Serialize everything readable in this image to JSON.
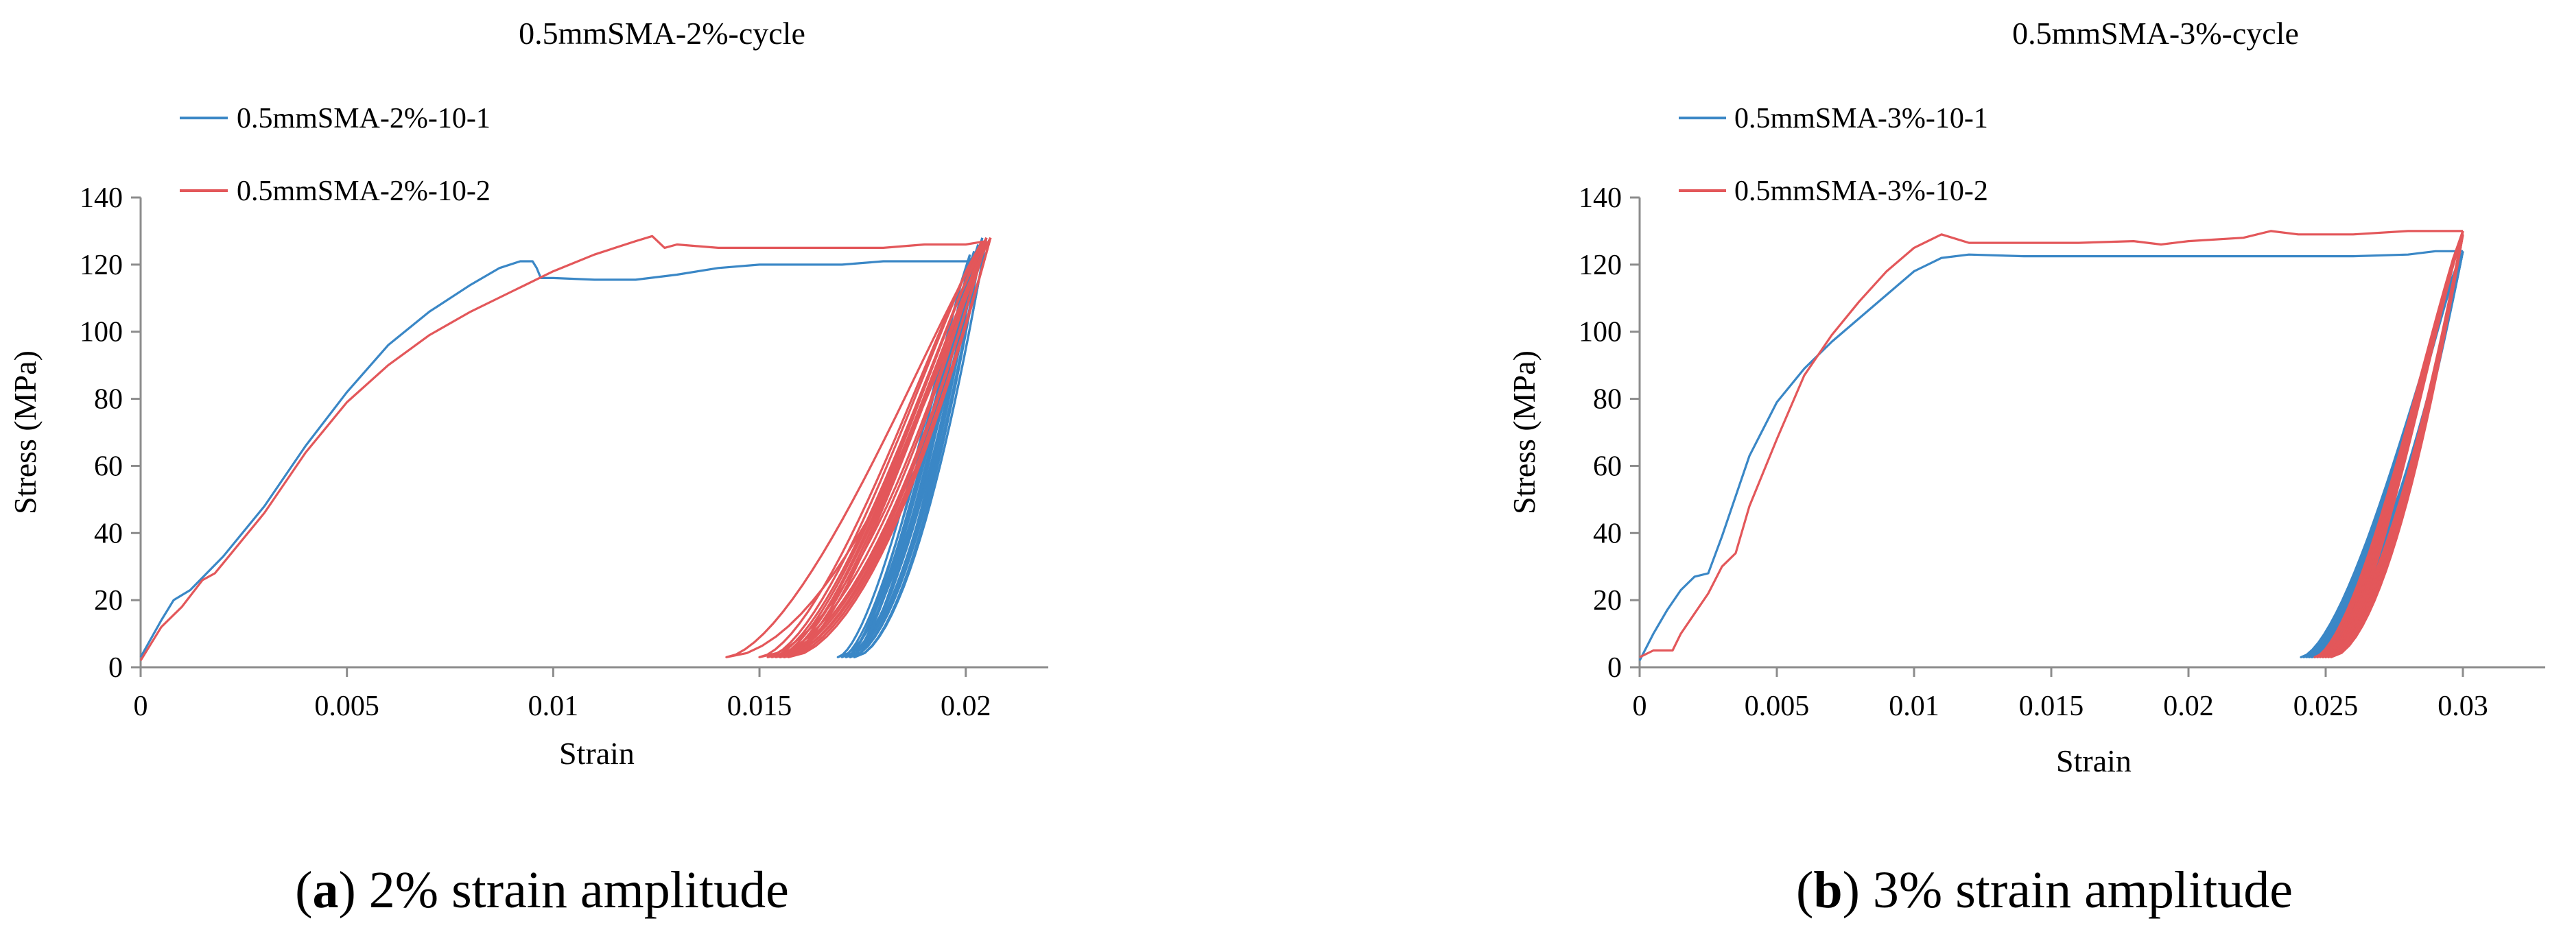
{
  "figure": {
    "captions": [
      {
        "letter": "a",
        "open": "(",
        "close": ")",
        "text": " 2% strain amplitude"
      },
      {
        "letter": "b",
        "open": "(",
        "close": ")",
        "text": " 3% strain amplitude"
      }
    ]
  },
  "colors": {
    "series_1": "#3A87C6",
    "series_2": "#E3575A",
    "axis": "#8c8c8c"
  },
  "chart_data": [
    {
      "type": "line",
      "title": "0.5mmSMA-2%-cycle",
      "xlabel": "Strain",
      "ylabel": "Stress (MPa)",
      "xlim": [
        0,
        0.022
      ],
      "ylim": [
        0,
        140
      ],
      "xticks": [
        0,
        0.005,
        0.01,
        0.015,
        0.02
      ],
      "xtick_labels": [
        "0",
        "0.005",
        "0.01",
        "0.015",
        "0.02"
      ],
      "yticks": [
        0,
        20,
        40,
        60,
        80,
        100,
        120,
        140
      ],
      "ytick_labels": [
        "0",
        "20",
        "40",
        "60",
        "80",
        "100",
        "120",
        "140"
      ],
      "grid": false,
      "legend": "top-left",
      "series": [
        {
          "name": "0.5mmSMA-2%-10-1",
          "color": "#3A87C6",
          "loading": [
            [
              0,
              3
            ],
            [
              0.0005,
              14
            ],
            [
              0.0008,
              20
            ],
            [
              0.0012,
              23
            ],
            [
              0.002,
              33
            ],
            [
              0.003,
              48
            ],
            [
              0.004,
              66
            ],
            [
              0.005,
              82
            ],
            [
              0.006,
              96
            ],
            [
              0.007,
              106
            ],
            [
              0.008,
              114
            ],
            [
              0.0087,
              119
            ],
            [
              0.0092,
              121
            ],
            [
              0.0095,
              121
            ],
            [
              0.0096,
              119
            ],
            [
              0.0097,
              116
            ],
            [
              0.01,
              116
            ],
            [
              0.011,
              115.5
            ],
            [
              0.012,
              115.5
            ],
            [
              0.013,
              117
            ],
            [
              0.014,
              119
            ],
            [
              0.015,
              120
            ],
            [
              0.016,
              120
            ],
            [
              0.017,
              120
            ],
            [
              0.018,
              121
            ],
            [
              0.019,
              121
            ],
            [
              0.02,
              121
            ],
            [
              0.0202,
              121
            ]
          ],
          "cycles": [
            {
              "peak": [
                0.0202,
                121
              ],
              "end": [
                0.017,
                3
              ]
            },
            {
              "peak": [
                0.0201,
                122
              ],
              "end": [
                0.0169,
                3
              ]
            },
            {
              "peak": [
                0.0201,
                123
              ],
              "end": [
                0.0171,
                3
              ]
            },
            {
              "peak": [
                0.0202,
                124
              ],
              "end": [
                0.0172,
                3
              ]
            },
            {
              "peak": [
                0.0203,
                125
              ],
              "end": [
                0.0171,
                3
              ]
            },
            {
              "peak": [
                0.0203,
                126
              ],
              "end": [
                0.0172,
                3
              ]
            },
            {
              "peak": [
                0.0204,
                127
              ],
              "end": [
                0.0173,
                3
              ]
            },
            {
              "peak": [
                0.0204,
                128
              ],
              "end": [
                0.0172,
                3
              ]
            },
            {
              "peak": [
                0.0205,
                128
              ],
              "end": [
                0.0173,
                3
              ]
            },
            {
              "peak": [
                0.0205,
                128
              ],
              "end": [
                0.0173,
                3
              ]
            }
          ]
        },
        {
          "name": "0.5mmSMA-2%-10-2",
          "color": "#E3575A",
          "loading": [
            [
              0,
              2
            ],
            [
              0.0005,
              12
            ],
            [
              0.001,
              18
            ],
            [
              0.0015,
              26
            ],
            [
              0.0018,
              28
            ],
            [
              0.002,
              31
            ],
            [
              0.003,
              46
            ],
            [
              0.004,
              64
            ],
            [
              0.005,
              79
            ],
            [
              0.006,
              90
            ],
            [
              0.007,
              99
            ],
            [
              0.008,
              106
            ],
            [
              0.009,
              112
            ],
            [
              0.01,
              118
            ],
            [
              0.011,
              123
            ],
            [
              0.012,
              127
            ],
            [
              0.0124,
              128.5
            ],
            [
              0.0127,
              125
            ],
            [
              0.013,
              126
            ],
            [
              0.014,
              125
            ],
            [
              0.015,
              125
            ],
            [
              0.016,
              125
            ],
            [
              0.017,
              125
            ],
            [
              0.018,
              125
            ],
            [
              0.019,
              126
            ],
            [
              0.02,
              126
            ],
            [
              0.0205,
              127
            ]
          ],
          "cycles": [
            {
              "peak": [
                0.0205,
                127
              ],
              "end": [
                0.0142,
                3
              ]
            },
            {
              "peak": [
                0.0204,
                127
              ],
              "end": [
                0.015,
                3
              ]
            },
            {
              "peak": [
                0.0204,
                127
              ],
              "end": [
                0.0152,
                3
              ]
            },
            {
              "peak": [
                0.0205,
                127
              ],
              "end": [
                0.0153,
                3
              ]
            },
            {
              "peak": [
                0.0205,
                128
              ],
              "end": [
                0.0154,
                3
              ]
            },
            {
              "peak": [
                0.0205,
                128
              ],
              "end": [
                0.0155,
                3
              ]
            },
            {
              "peak": [
                0.0206,
                128
              ],
              "end": [
                0.0155,
                3
              ]
            },
            {
              "peak": [
                0.0206,
                128
              ],
              "end": [
                0.0156,
                3
              ]
            },
            {
              "peak": [
                0.0206,
                128
              ],
              "end": [
                0.0156,
                3
              ]
            },
            {
              "peak": [
                0.0206,
                128
              ],
              "end": [
                0.0157,
                3
              ]
            }
          ]
        }
      ]
    },
    {
      "type": "line",
      "title": "0.5mmSMA-3%-cycle",
      "xlabel": "Strain",
      "ylabel": "Stress (MPa)",
      "xlim": [
        0,
        0.033
      ],
      "ylim": [
        0,
        140
      ],
      "xticks": [
        0,
        0.005,
        0.01,
        0.015,
        0.02,
        0.025,
        0.03
      ],
      "xtick_labels": [
        "0",
        "0.005",
        "0.01",
        "0.015",
        "0.02",
        "0.025",
        "0.03"
      ],
      "yticks": [
        0,
        20,
        40,
        60,
        80,
        100,
        120,
        140
      ],
      "ytick_labels": [
        "0",
        "20",
        "40",
        "60",
        "80",
        "100",
        "120",
        "140"
      ],
      "grid": false,
      "legend": "top-left",
      "series": [
        {
          "name": "0.5mmSMA-3%-10-1",
          "color": "#3A87C6",
          "loading": [
            [
              0,
              2
            ],
            [
              0.0005,
              10
            ],
            [
              0.001,
              17
            ],
            [
              0.0015,
              23
            ],
            [
              0.002,
              27
            ],
            [
              0.0025,
              28
            ],
            [
              0.003,
              39
            ],
            [
              0.004,
              63
            ],
            [
              0.005,
              79
            ],
            [
              0.006,
              89
            ],
            [
              0.007,
              97
            ],
            [
              0.008,
              104
            ],
            [
              0.009,
              111
            ],
            [
              0.01,
              118
            ],
            [
              0.011,
              122
            ],
            [
              0.012,
              123
            ],
            [
              0.014,
              122.5
            ],
            [
              0.016,
              122.5
            ],
            [
              0.018,
              122.5
            ],
            [
              0.02,
              122.5
            ],
            [
              0.022,
              122.5
            ],
            [
              0.024,
              122.5
            ],
            [
              0.026,
              122.5
            ],
            [
              0.028,
              123
            ],
            [
              0.029,
              124
            ],
            [
              0.03,
              124
            ]
          ],
          "cycles": [
            {
              "peak": [
                0.03,
                124
              ],
              "end": [
                0.0241,
                3
              ]
            },
            {
              "peak": [
                0.03,
                124
              ],
              "end": [
                0.0242,
                3
              ]
            },
            {
              "peak": [
                0.03,
                124
              ],
              "end": [
                0.0243,
                3
              ]
            },
            {
              "peak": [
                0.03,
                124
              ],
              "end": [
                0.0244,
                3
              ]
            },
            {
              "peak": [
                0.03,
                124
              ],
              "end": [
                0.0244,
                3
              ]
            },
            {
              "peak": [
                0.03,
                124
              ],
              "end": [
                0.0245,
                3
              ]
            },
            {
              "peak": [
                0.03,
                124
              ],
              "end": [
                0.0245,
                3
              ]
            },
            {
              "peak": [
                0.03,
                124
              ],
              "end": [
                0.0246,
                3
              ]
            },
            {
              "peak": [
                0.03,
                124
              ],
              "end": [
                0.0246,
                3
              ]
            },
            {
              "peak": [
                0.03,
                124
              ],
              "end": [
                0.0247,
                3
              ]
            }
          ]
        },
        {
          "name": "0.5mmSMA-3%-10-2",
          "color": "#E3575A",
          "loading": [
            [
              0,
              3
            ],
            [
              0.0005,
              5
            ],
            [
              0.0012,
              5
            ],
            [
              0.0015,
              10
            ],
            [
              0.002,
              16
            ],
            [
              0.0025,
              22
            ],
            [
              0.003,
              30
            ],
            [
              0.0035,
              34
            ],
            [
              0.004,
              48
            ],
            [
              0.005,
              68
            ],
            [
              0.006,
              87
            ],
            [
              0.007,
              99
            ],
            [
              0.008,
              109
            ],
            [
              0.009,
              118
            ],
            [
              0.01,
              125
            ],
            [
              0.011,
              129
            ],
            [
              0.012,
              126.5
            ],
            [
              0.014,
              126.5
            ],
            [
              0.016,
              126.5
            ],
            [
              0.018,
              127
            ],
            [
              0.019,
              126
            ],
            [
              0.02,
              127
            ],
            [
              0.022,
              128
            ],
            [
              0.023,
              130
            ],
            [
              0.024,
              129
            ],
            [
              0.026,
              129
            ],
            [
              0.028,
              130
            ],
            [
              0.03,
              130
            ]
          ],
          "cycles": [
            {
              "peak": [
                0.03,
                130
              ],
              "end": [
                0.0246,
                3
              ]
            },
            {
              "peak": [
                0.03,
                130
              ],
              "end": [
                0.0247,
                3
              ]
            },
            {
              "peak": [
                0.03,
                130
              ],
              "end": [
                0.0248,
                3
              ]
            },
            {
              "peak": [
                0.03,
                129
              ],
              "end": [
                0.0249,
                3
              ]
            },
            {
              "peak": [
                0.03,
                129
              ],
              "end": [
                0.0249,
                3
              ]
            },
            {
              "peak": [
                0.03,
                129
              ],
              "end": [
                0.025,
                3
              ]
            },
            {
              "peak": [
                0.03,
                129
              ],
              "end": [
                0.025,
                3
              ]
            },
            {
              "peak": [
                0.03,
                129
              ],
              "end": [
                0.0251,
                3
              ]
            },
            {
              "peak": [
                0.03,
                129
              ],
              "end": [
                0.0251,
                3
              ]
            },
            {
              "peak": [
                0.03,
                129
              ],
              "end": [
                0.0252,
                3
              ]
            }
          ]
        }
      ]
    }
  ]
}
